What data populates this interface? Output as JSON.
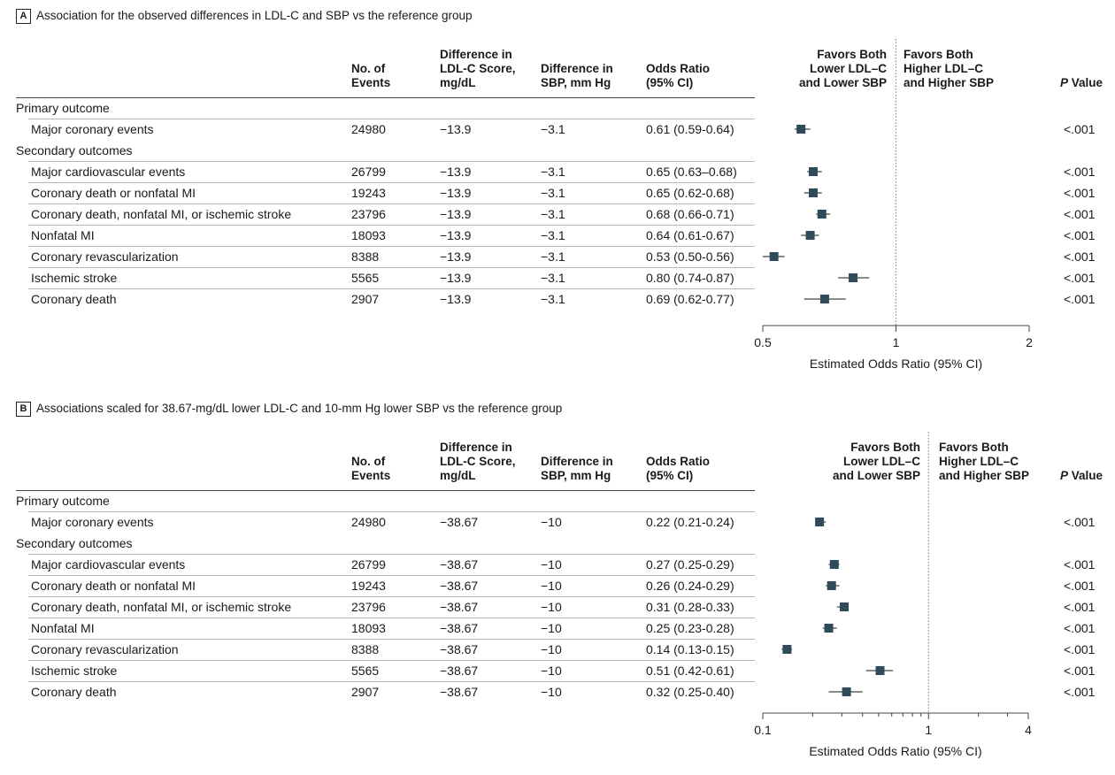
{
  "columns": {
    "events": [
      "No. of",
      "Events"
    ],
    "ldl": [
      "Difference in",
      "LDL-C Score,",
      "mg/dL"
    ],
    "sbp": [
      "Difference in",
      "SBP, mm Hg"
    ],
    "or": [
      "Odds Ratio",
      "(95% CI)"
    ],
    "favors_left": [
      "Favors Both",
      "Lower LDL–C",
      "and Lower SBP"
    ],
    "favors_right": [
      "Favors Both",
      "Higher LDL–C",
      "and Higher SBP"
    ],
    "p_value_italic": "P",
    "p_value_rest": " Value"
  },
  "sections": {
    "primary": "Primary outcome",
    "secondary": "Secondary outcomes"
  },
  "colors": {
    "marker": "#2e4b5a",
    "line": "#444444",
    "ref": "#777777"
  },
  "chart_data": [
    {
      "type": "forest",
      "badge": "A",
      "title": "Association for the observed differences in LDL-C and SBP vs the reference group",
      "xlabel": "Estimated Odds Ratio (95% CI)",
      "scale": "log",
      "xlim": [
        0.5,
        2
      ],
      "reference": 1,
      "ticks": [
        0.5,
        1,
        2
      ],
      "tick_labels": [
        "0.5",
        "1",
        "2"
      ],
      "minor_ticks": [],
      "rows": [
        {
          "label": "Major coronary events",
          "group": "primary",
          "events": "24980",
          "ldl": "−13.9",
          "sbp": "−3.1",
          "or_text": "0.61 (0.59-0.64)",
          "or": 0.61,
          "lo": 0.59,
          "hi": 0.64,
          "p": "<.001"
        },
        {
          "label": "Major cardiovascular events",
          "group": "secondary",
          "events": "26799",
          "ldl": "−13.9",
          "sbp": "−3.1",
          "or_text": "0.65 (0.63–0.68)",
          "or": 0.65,
          "lo": 0.63,
          "hi": 0.68,
          "p": "<.001"
        },
        {
          "label": "Coronary death or nonfatal MI",
          "group": "secondary",
          "events": "19243",
          "ldl": "−13.9",
          "sbp": "−3.1",
          "or_text": "0.65 (0.62-0.68)",
          "or": 0.65,
          "lo": 0.62,
          "hi": 0.68,
          "p": "<.001"
        },
        {
          "label": "Coronary death, nonfatal MI, or ischemic stroke",
          "group": "secondary",
          "events": "23796",
          "ldl": "−13.9",
          "sbp": "−3.1",
          "or_text": "0.68 (0.66-0.71)",
          "or": 0.68,
          "lo": 0.66,
          "hi": 0.71,
          "p": "<.001"
        },
        {
          "label": "Nonfatal MI",
          "group": "secondary",
          "events": "18093",
          "ldl": "−13.9",
          "sbp": "−3.1",
          "or_text": "0.64 (0.61-0.67)",
          "or": 0.64,
          "lo": 0.61,
          "hi": 0.67,
          "p": "<.001"
        },
        {
          "label": "Coronary revascularization",
          "group": "secondary",
          "events": "8388",
          "ldl": "−13.9",
          "sbp": "−3.1",
          "or_text": "0.53 (0.50-0.56)",
          "or": 0.53,
          "lo": 0.5,
          "hi": 0.56,
          "p": "<.001"
        },
        {
          "label": "Ischemic stroke",
          "group": "secondary",
          "events": "5565",
          "ldl": "−13.9",
          "sbp": "−3.1",
          "or_text": "0.80 (0.74-0.87)",
          "or": 0.8,
          "lo": 0.74,
          "hi": 0.87,
          "p": "<.001"
        },
        {
          "label": "Coronary death",
          "group": "secondary",
          "events": "2907",
          "ldl": "−13.9",
          "sbp": "−3.1",
          "or_text": "0.69 (0.62-0.77)",
          "or": 0.69,
          "lo": 0.62,
          "hi": 0.77,
          "p": "<.001"
        }
      ]
    },
    {
      "type": "forest",
      "badge": "B",
      "title": "Associations scaled for 38.67-mg/dL lower LDL-C and 10-mm Hg lower SBP vs the reference group",
      "xlabel": "Estimated Odds Ratio (95% CI)",
      "scale": "log",
      "xlim": [
        0.1,
        4
      ],
      "reference": 1,
      "ticks": [
        0.1,
        1,
        4
      ],
      "tick_labels": [
        "0.1",
        "1",
        "4"
      ],
      "minor_ticks": [
        0.2,
        0.3,
        0.4,
        0.5,
        0.6,
        0.7,
        0.8,
        0.9,
        2,
        3
      ],
      "rows": [
        {
          "label": "Major coronary events",
          "group": "primary",
          "events": "24980",
          "ldl": "−38.67",
          "sbp": "−10",
          "or_text": "0.22 (0.21-0.24)",
          "or": 0.22,
          "lo": 0.21,
          "hi": 0.24,
          "p": "<.001"
        },
        {
          "label": "Major cardiovascular events",
          "group": "secondary",
          "events": "26799",
          "ldl": "−38.67",
          "sbp": "−10",
          "or_text": "0.27 (0.25-0.29)",
          "or": 0.27,
          "lo": 0.25,
          "hi": 0.29,
          "p": "<.001"
        },
        {
          "label": "Coronary death or nonfatal MI",
          "group": "secondary",
          "events": "19243",
          "ldl": "−38.67",
          "sbp": "−10",
          "or_text": "0.26 (0.24-0.29)",
          "or": 0.26,
          "lo": 0.24,
          "hi": 0.29,
          "p": "<.001"
        },
        {
          "label": "Coronary death, nonfatal MI, or ischemic stroke",
          "group": "secondary",
          "events": "23796",
          "ldl": "−38.67",
          "sbp": "−10",
          "or_text": "0.31 (0.28-0.33)",
          "or": 0.31,
          "lo": 0.28,
          "hi": 0.33,
          "p": "<.001"
        },
        {
          "label": "Nonfatal MI",
          "group": "secondary",
          "events": "18093",
          "ldl": "−38.67",
          "sbp": "−10",
          "or_text": "0.25 (0.23-0.28)",
          "or": 0.25,
          "lo": 0.23,
          "hi": 0.28,
          "p": "<.001"
        },
        {
          "label": "Coronary revascularization",
          "group": "secondary",
          "events": "8388",
          "ldl": "−38.67",
          "sbp": "−10",
          "or_text": "0.14 (0.13-0.15)",
          "or": 0.14,
          "lo": 0.13,
          "hi": 0.15,
          "p": "<.001"
        },
        {
          "label": "Ischemic stroke",
          "group": "secondary",
          "events": "5565",
          "ldl": "−38.67",
          "sbp": "−10",
          "or_text": "0.51 (0.42-0.61)",
          "or": 0.51,
          "lo": 0.42,
          "hi": 0.61,
          "p": "<.001"
        },
        {
          "label": "Coronary death",
          "group": "secondary",
          "events": "2907",
          "ldl": "−38.67",
          "sbp": "−10",
          "or_text": "0.32 (0.25-0.40)",
          "or": 0.32,
          "lo": 0.25,
          "hi": 0.4,
          "p": "<.001"
        }
      ]
    }
  ]
}
